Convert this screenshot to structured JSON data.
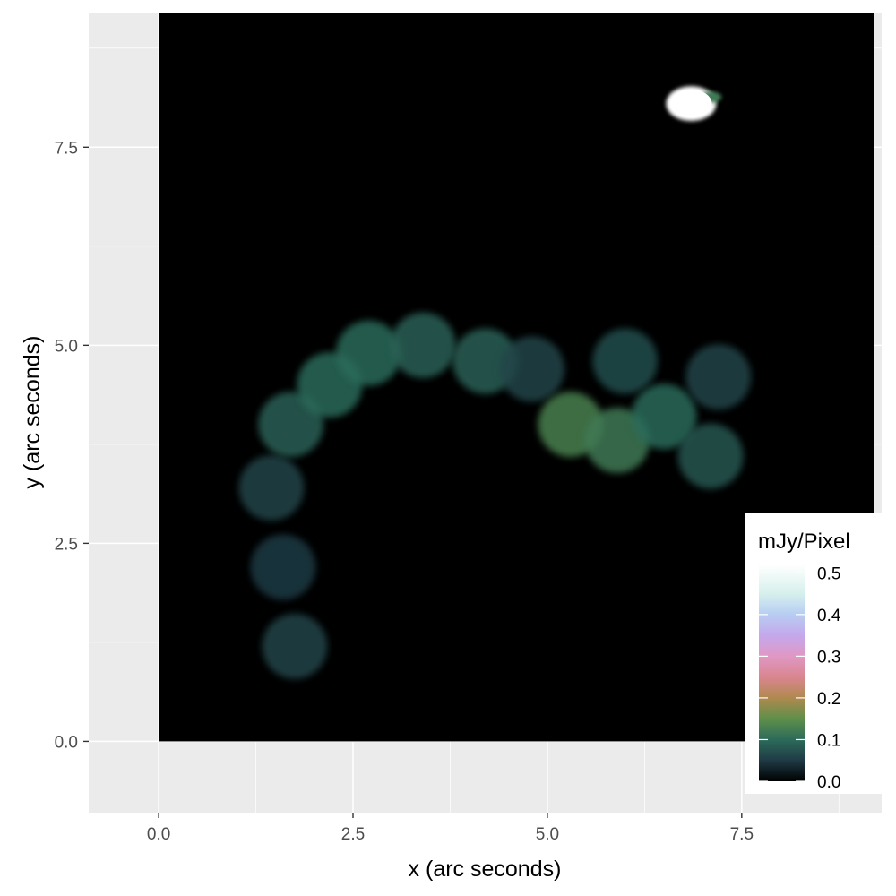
{
  "chart_data": {
    "type": "heatmap",
    "title": "",
    "xlabel": "x (arc seconds)",
    "ylabel": "y (arc seconds)",
    "xlim": [
      -0.9,
      9.3
    ],
    "ylim": [
      -0.9,
      9.2
    ],
    "image_extent": {
      "x": [
        0,
        9.2
      ],
      "y": [
        0,
        9.2
      ]
    },
    "grid": true,
    "x_ticks": [
      {
        "value": 0,
        "label": "0.0"
      },
      {
        "value": 2.5,
        "label": "2.5"
      },
      {
        "value": 5,
        "label": "5.0"
      },
      {
        "value": 7.5,
        "label": "7.5"
      }
    ],
    "y_ticks": [
      {
        "value": 0,
        "label": "0.0"
      },
      {
        "value": 2.5,
        "label": "2.5"
      },
      {
        "value": 5,
        "label": "5.0"
      },
      {
        "value": 7.5,
        "label": "7.5"
      }
    ],
    "colorbar": {
      "title": "mJy/Pixel",
      "placement": "right",
      "min": 0,
      "max": 0.52,
      "ticks": [
        {
          "value": 0.0,
          "label": "0.0"
        },
        {
          "value": 0.1,
          "label": "0.1"
        },
        {
          "value": 0.2,
          "label": "0.2"
        },
        {
          "value": 0.3,
          "label": "0.3"
        },
        {
          "value": 0.4,
          "label": "0.4"
        },
        {
          "value": 0.5,
          "label": "0.5"
        }
      ],
      "stops": [
        {
          "value": 0.0,
          "color": "#000000"
        },
        {
          "value": 0.05,
          "color": "#1f3a44"
        },
        {
          "value": 0.1,
          "color": "#2c6b5a"
        },
        {
          "value": 0.15,
          "color": "#5e8f4a"
        },
        {
          "value": 0.2,
          "color": "#b0894e"
        },
        {
          "value": 0.25,
          "color": "#d9868f"
        },
        {
          "value": 0.3,
          "color": "#e098c4"
        },
        {
          "value": 0.35,
          "color": "#c4a8ec"
        },
        {
          "value": 0.4,
          "color": "#b7cdf2"
        },
        {
          "value": 0.45,
          "color": "#d6f0ec"
        },
        {
          "value": 0.52,
          "color": "#ffffff"
        }
      ]
    },
    "features": [
      {
        "name": "arc",
        "x": 1.75,
        "y": 1.2,
        "value": 0.06
      },
      {
        "name": "arc",
        "x": 1.6,
        "y": 2.2,
        "value": 0.05
      },
      {
        "name": "arc",
        "x": 1.45,
        "y": 3.2,
        "value": 0.06
      },
      {
        "name": "arc",
        "x": 1.7,
        "y": 4.0,
        "value": 0.09
      },
      {
        "name": "arc",
        "x": 2.2,
        "y": 4.5,
        "value": 0.1
      },
      {
        "name": "arc",
        "x": 2.7,
        "y": 4.9,
        "value": 0.1
      },
      {
        "name": "arc",
        "x": 3.4,
        "y": 5.0,
        "value": 0.09
      },
      {
        "name": "arc",
        "x": 4.2,
        "y": 4.8,
        "value": 0.09
      },
      {
        "name": "arc",
        "x": 4.8,
        "y": 4.7,
        "value": 0.06
      },
      {
        "name": "knot",
        "x": 5.3,
        "y": 4.0,
        "value": 0.13
      },
      {
        "name": "knot",
        "x": 5.9,
        "y": 3.8,
        "value": 0.12
      },
      {
        "name": "knot",
        "x": 6.5,
        "y": 4.1,
        "value": 0.1
      },
      {
        "name": "knot",
        "x": 7.1,
        "y": 3.6,
        "value": 0.08
      },
      {
        "name": "knot",
        "x": 6.0,
        "y": 4.8,
        "value": 0.07
      },
      {
        "name": "knot",
        "x": 7.2,
        "y": 4.6,
        "value": 0.06
      },
      {
        "name": "bright-source",
        "x": 6.85,
        "y": 8.05,
        "value": 0.52
      }
    ]
  }
}
